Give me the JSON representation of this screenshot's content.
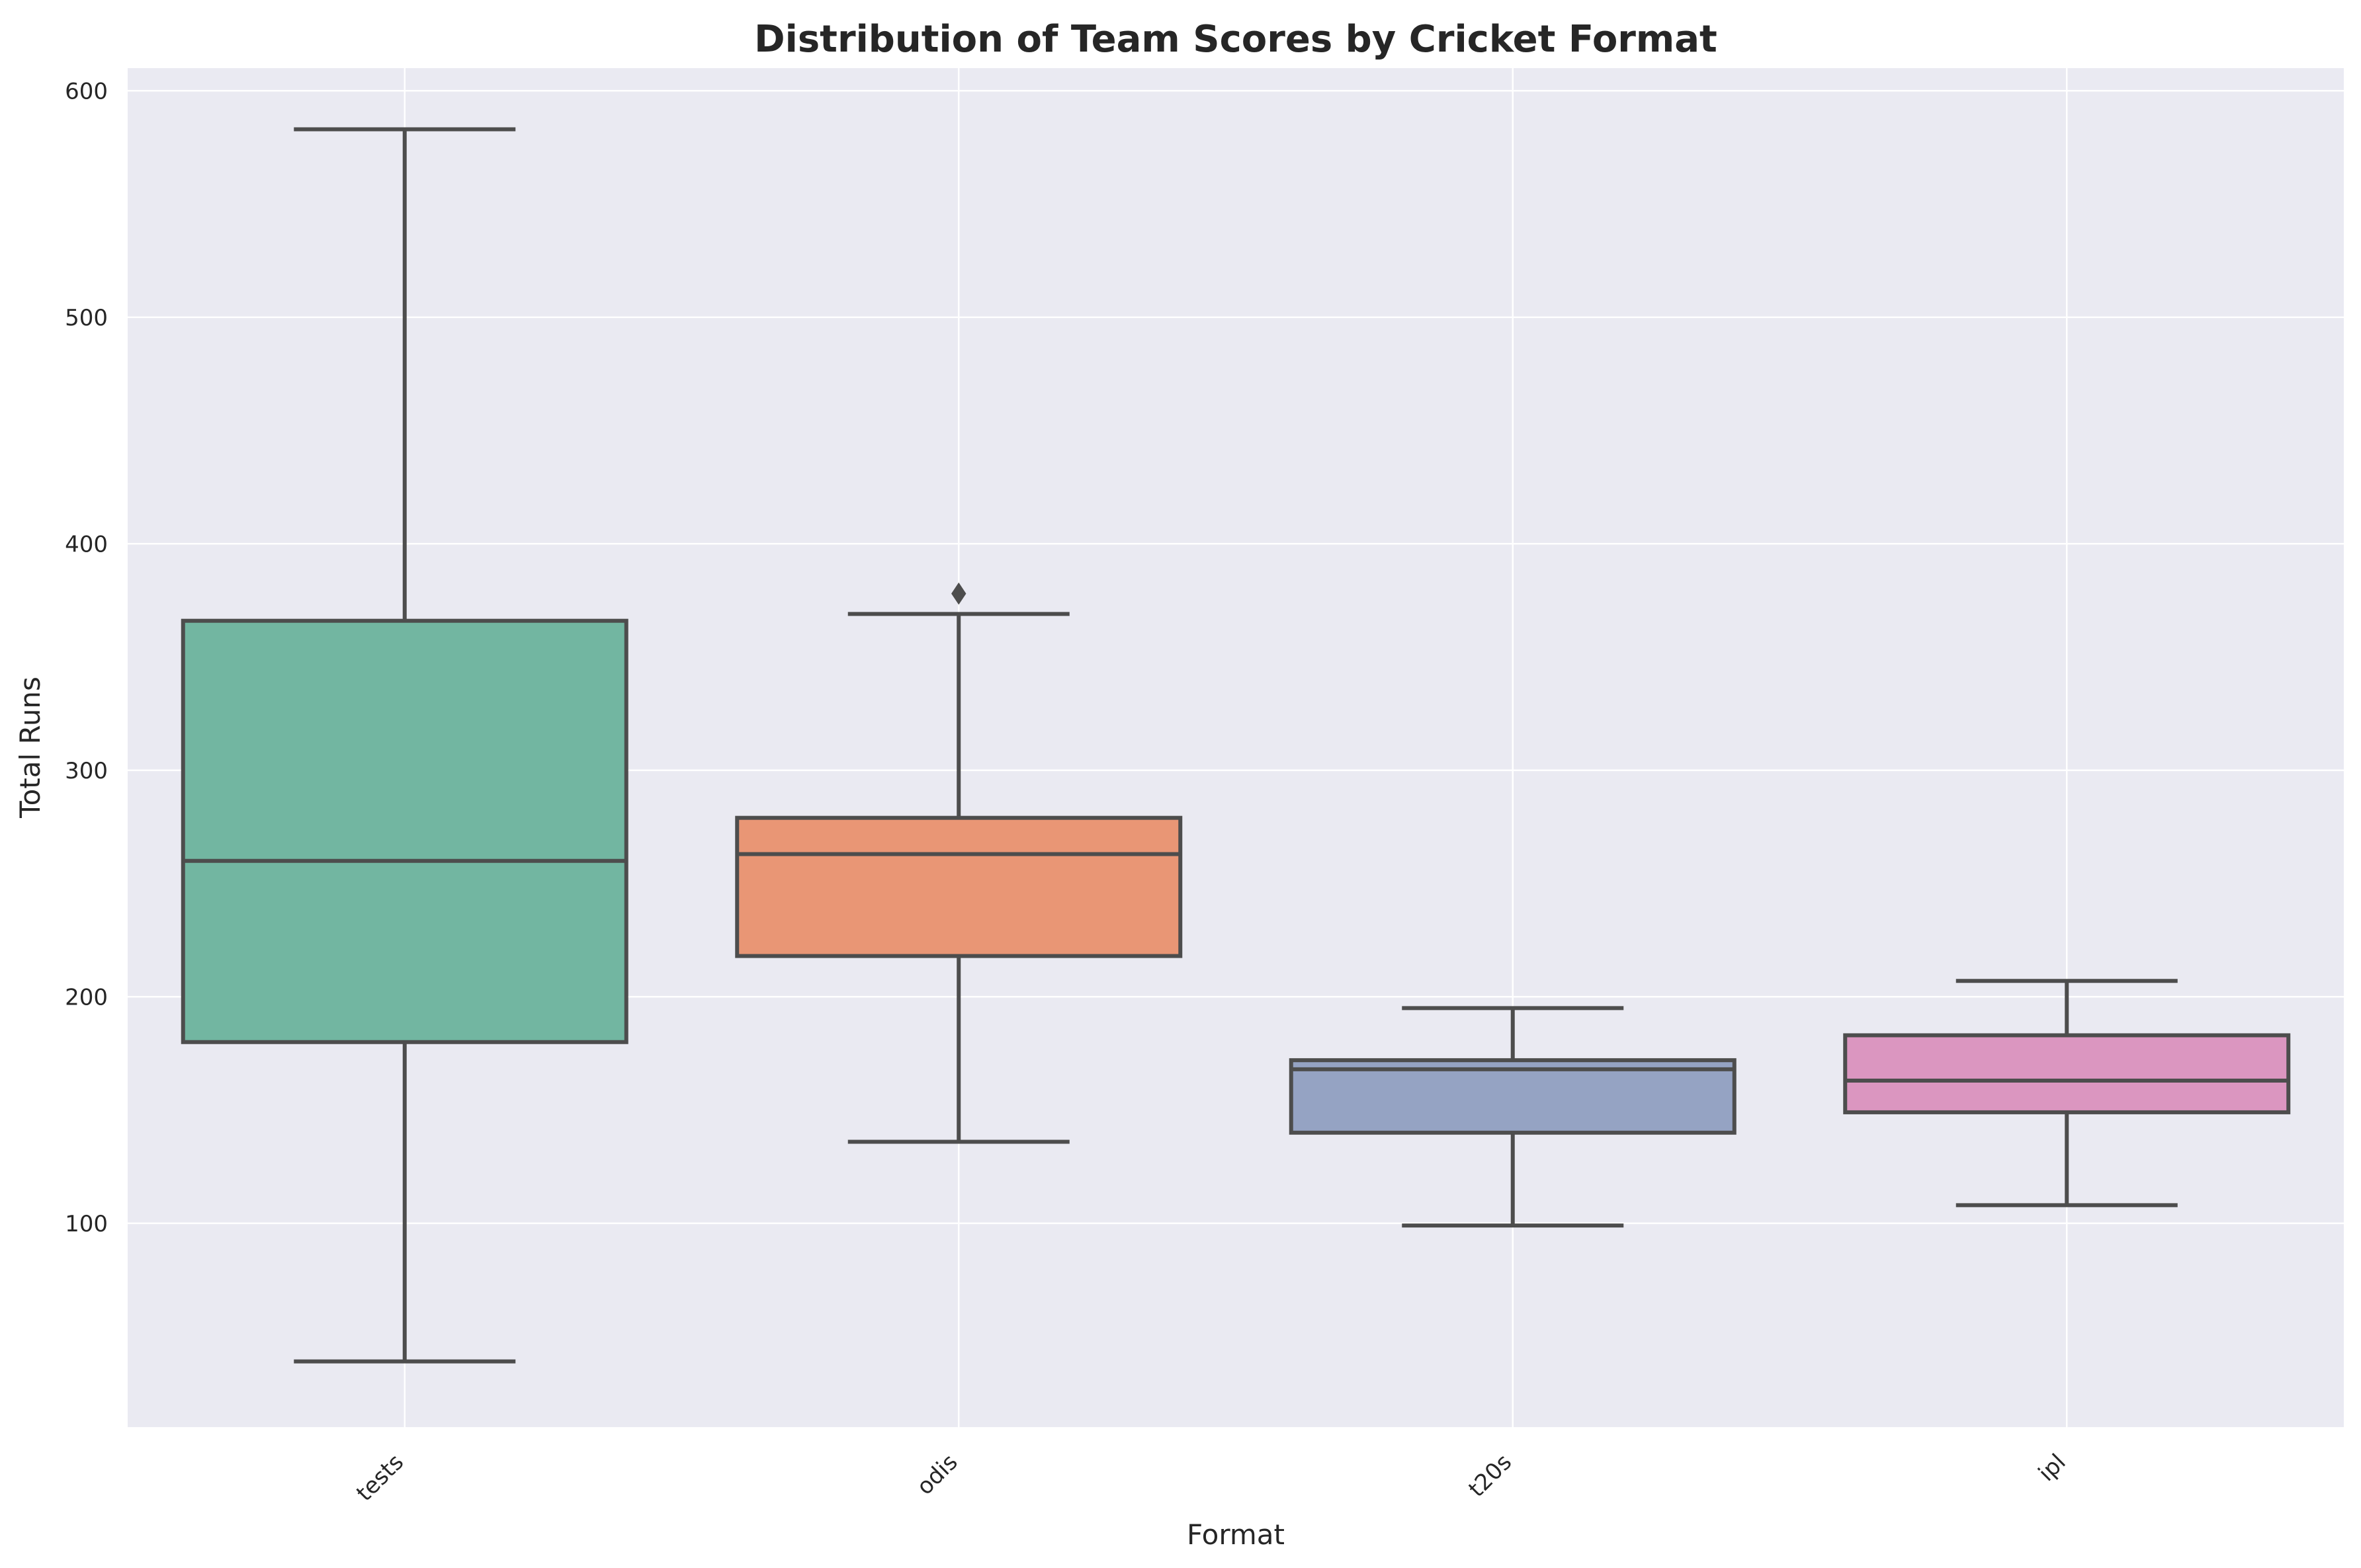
{
  "chart_data": {
    "type": "box",
    "title": "Distribution of Team Scores by Cricket Format",
    "xlabel": "Format",
    "ylabel": "Total Runs",
    "ylim": [
      10,
      610
    ],
    "yticks": [
      100,
      200,
      300,
      400,
      500,
      600
    ],
    "grid": true,
    "categories": [
      "tests",
      "odis",
      "t20s",
      "ipl"
    ],
    "boxes": [
      {
        "category": "tests",
        "whisker_low": 39,
        "q1": 180,
        "median": 260,
        "q3": 366,
        "whisker_high": 583,
        "outliers": [],
        "color": "#72b6a1"
      },
      {
        "category": "odis",
        "whisker_low": 136,
        "q1": 218,
        "median": 263,
        "q3": 279,
        "whisker_high": 369,
        "outliers": [
          378
        ],
        "color": "#e99675"
      },
      {
        "category": "t20s",
        "whisker_low": 99,
        "q1": 140,
        "median": 168,
        "q3": 172,
        "whisker_high": 195,
        "outliers": [],
        "color": "#95a3c3"
      },
      {
        "category": "ipl",
        "whisker_low": 108,
        "q1": 149,
        "median": 163,
        "q3": 183,
        "whisker_high": 207,
        "outliers": [],
        "color": "#db96c0"
      }
    ],
    "colors": {
      "plot_background": "#eaeaf2",
      "grid": "#ffffff",
      "line": "#4d4d4d"
    }
  }
}
